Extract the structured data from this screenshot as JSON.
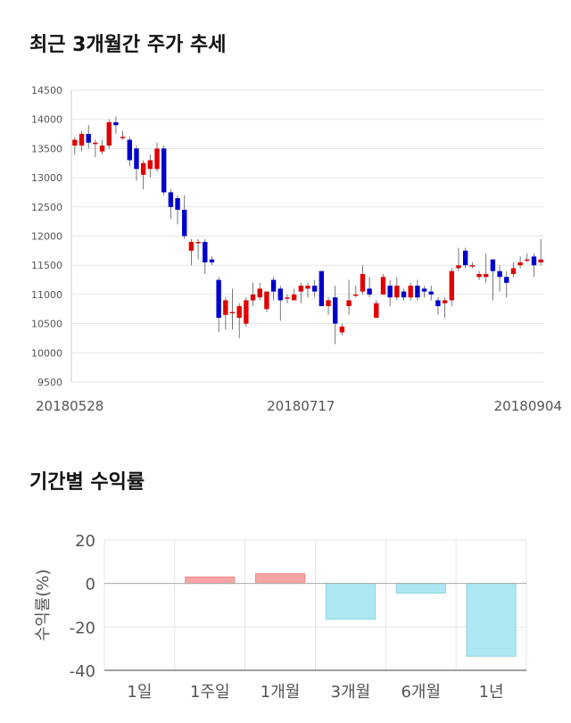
{
  "sections": {
    "price_title": "최근 3개월간 주가 추세",
    "returns_title": "기간별 수익률"
  },
  "colors": {
    "up": "#e00000",
    "down": "#0000cc",
    "positive_bar": "#f7a5a5",
    "negative_bar": "#ade8f2",
    "grid": "#e6e6e6"
  },
  "chart_data": [
    {
      "type": "candlestick",
      "title": "최근 3개월간 주가 추세",
      "ylim": [
        9500,
        14500
      ],
      "yticks": [
        9500,
        10000,
        10500,
        11000,
        11500,
        12000,
        12500,
        13000,
        13500,
        14000,
        14500
      ],
      "xtick_labels": [
        {
          "index": 0,
          "label": "20180528"
        },
        {
          "index": 33,
          "label": "20180717"
        },
        {
          "index": 65,
          "label": "20180904"
        }
      ],
      "candles": [
        [
          13550,
          13650,
          13400,
          13700
        ],
        [
          13550,
          13750,
          13450,
          13800
        ],
        [
          13750,
          13600,
          13500,
          13900
        ],
        [
          13600,
          13600,
          13350,
          13650
        ],
        [
          13450,
          13550,
          13400,
          13650
        ],
        [
          13550,
          13950,
          13500,
          14000
        ],
        [
          13950,
          13900,
          13750,
          14050
        ],
        [
          13700,
          13700,
          13650,
          13800
        ],
        [
          13650,
          13300,
          13200,
          13700
        ],
        [
          13500,
          13150,
          12950,
          13550
        ],
        [
          13050,
          13250,
          12800,
          13300
        ],
        [
          13150,
          13300,
          13000,
          13400
        ],
        [
          13150,
          13500,
          13100,
          13600
        ],
        [
          13500,
          12750,
          12700,
          13550
        ],
        [
          12750,
          12500,
          12300,
          12800
        ],
        [
          12650,
          12450,
          12200,
          12700
        ],
        [
          12450,
          12000,
          11950,
          12700
        ],
        [
          11750,
          11900,
          11500,
          11950
        ],
        [
          11900,
          11900,
          11600,
          11950
        ],
        [
          11900,
          11550,
          11350,
          11950
        ],
        [
          11600,
          11550,
          11500,
          11650
        ],
        [
          11250,
          10600,
          10350,
          11300
        ],
        [
          10650,
          10900,
          10400,
          10950
        ],
        [
          10700,
          10700,
          10400,
          11100
        ],
        [
          10600,
          10800,
          10250,
          10850
        ],
        [
          10500,
          10900,
          10450,
          10950
        ],
        [
          10900,
          11000,
          10800,
          11200
        ],
        [
          10950,
          11100,
          10900,
          11200
        ],
        [
          10750,
          11050,
          10700,
          11050
        ],
        [
          11250,
          11050,
          10900,
          11300
        ],
        [
          11100,
          10900,
          10550,
          11150
        ],
        [
          10950,
          10950,
          10850,
          11000
        ],
        [
          10900,
          11000,
          10900,
          11100
        ],
        [
          11050,
          11150,
          10850,
          11200
        ],
        [
          11100,
          11150,
          10950,
          11200
        ],
        [
          11150,
          11050,
          10950,
          11250
        ],
        [
          11400,
          10800,
          10800,
          11400
        ],
        [
          10800,
          10900,
          10650,
          10950
        ],
        [
          10950,
          10500,
          10150,
          11150
        ],
        [
          10350,
          10450,
          10300,
          10500
        ],
        [
          10800,
          10900,
          10650,
          11250
        ],
        [
          11000,
          11000,
          10950,
          11150
        ],
        [
          11050,
          11350,
          11000,
          11500
        ],
        [
          11100,
          11000,
          10950,
          11300
        ],
        [
          10600,
          10850,
          10600,
          10900
        ],
        [
          11000,
          11300,
          11000,
          11350
        ],
        [
          11150,
          10950,
          10800,
          11250
        ],
        [
          10950,
          11150,
          10900,
          11300
        ],
        [
          11050,
          10950,
          10900,
          11100
        ],
        [
          10950,
          11150,
          10900,
          11200
        ],
        [
          11150,
          10950,
          10900,
          11250
        ],
        [
          11100,
          11050,
          10950,
          11150
        ],
        [
          11050,
          11000,
          10900,
          11150
        ],
        [
          10900,
          10800,
          10650,
          10950
        ],
        [
          10850,
          10900,
          10600,
          10950
        ],
        [
          10900,
          11400,
          10800,
          11450
        ],
        [
          11450,
          11500,
          11400,
          11800
        ],
        [
          11750,
          11500,
          11450,
          11800
        ],
        [
          11500,
          11500,
          11450,
          11550
        ],
        [
          11300,
          11350,
          11250,
          11400
        ],
        [
          11300,
          11350,
          11200,
          11700
        ],
        [
          11600,
          11400,
          10900,
          11600
        ],
        [
          11400,
          11300,
          11050,
          11500
        ],
        [
          11300,
          11200,
          10950,
          11400
        ],
        [
          11350,
          11450,
          11300,
          11550
        ],
        [
          11500,
          11550,
          11450,
          11650
        ],
        [
          11600,
          11600,
          11550,
          11700
        ],
        [
          11650,
          11500,
          11300,
          11700
        ],
        [
          11550,
          11600,
          11500,
          11950
        ]
      ]
    },
    {
      "type": "bar",
      "title": "기간별 수익률",
      "ylabel": "수익률(%)",
      "ylim": [
        -40,
        20
      ],
      "yticks": [
        20,
        0,
        -20,
        -40
      ],
      "categories": [
        "1일",
        "1주일",
        "1개월",
        "3개월",
        "6개월",
        "1년"
      ],
      "values": [
        0,
        3,
        4.5,
        -16.5,
        -4.5,
        -33.5
      ]
    }
  ]
}
